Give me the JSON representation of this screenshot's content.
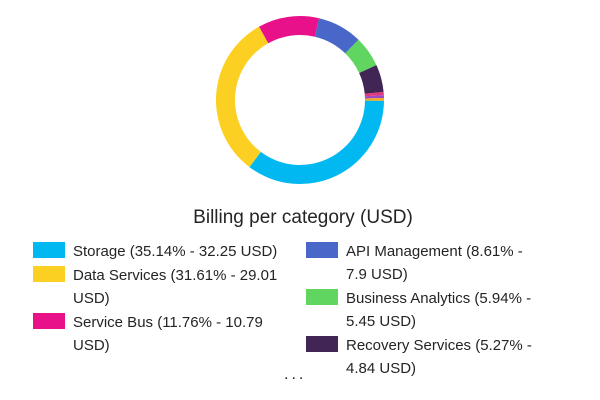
{
  "chart_data": {
    "type": "pie",
    "variant": "donut",
    "title": "Billing per category (USD)",
    "legend_position": "bottom",
    "slices": [
      {
        "name": "Storage",
        "label": "Storage (35.14% - 32.25 USD)",
        "percent": 35.14,
        "value": 32.25,
        "color": "#01B8F1"
      },
      {
        "name": "Data Services",
        "label": "Data Services (31.61% - 29.01 USD)",
        "percent": 31.61,
        "value": 29.01,
        "color": "#FCD022"
      },
      {
        "name": "Service Bus",
        "label": "Service Bus (11.76% - 10.79 USD)",
        "percent": 11.76,
        "value": 10.79,
        "color": "#E8118A"
      },
      {
        "name": "API Management",
        "label": "API Management (8.61% - 7.9 USD)",
        "percent": 8.61,
        "value": 7.9,
        "color": "#4867C9"
      },
      {
        "name": "Business Analytics",
        "label": "Business Analytics (5.94% - 5.45 USD)",
        "percent": 5.94,
        "value": 5.45,
        "color": "#60D660"
      },
      {
        "name": "Recovery Services",
        "label": "Recovery Services (5.27% - 4.84 USD)",
        "percent": 5.27,
        "value": 4.84,
        "color": "#412555"
      }
    ],
    "other_slices": [
      {
        "percent": 0.6,
        "color": "#E5387A"
      },
      {
        "percent": 0.55,
        "color": "#9B4BC7"
      },
      {
        "percent": 0.52,
        "color": "#F6A623"
      }
    ]
  },
  "legend": {
    "more_indicator": "..."
  }
}
